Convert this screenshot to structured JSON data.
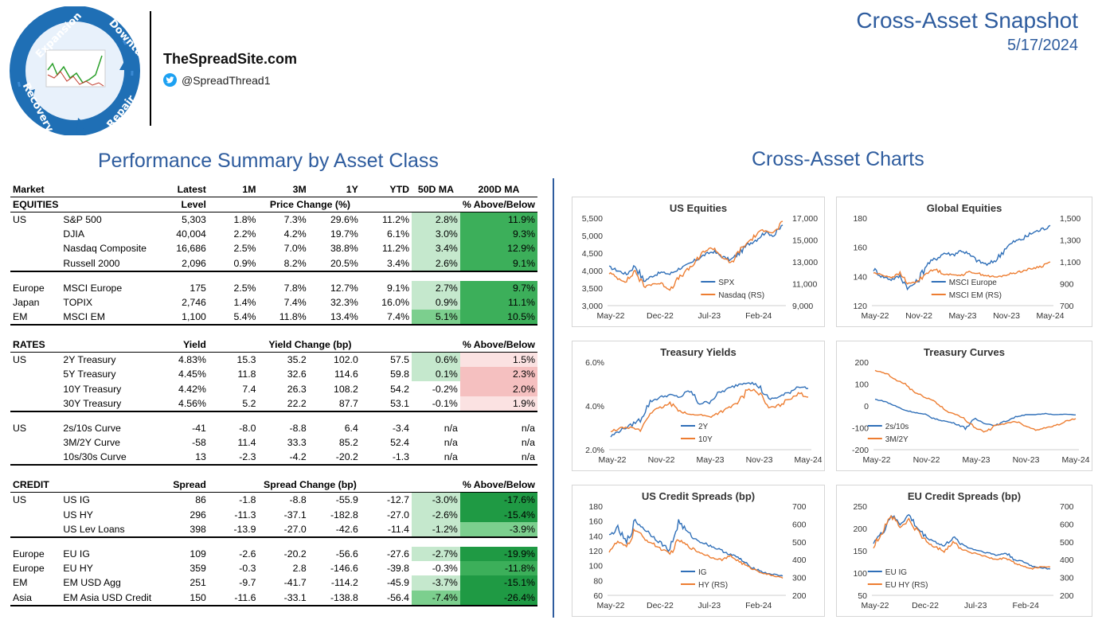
{
  "header": {
    "site_name": "TheSpreadSite.com",
    "twitter_handle": "@SpreadThread1",
    "report_title": "Cross-Asset Snapshot",
    "report_date": "5/17/2024",
    "logo_words": [
      "Expansion",
      "Downturn",
      "Repair",
      "Recovery"
    ]
  },
  "sections": {
    "performance_title": "Performance Summary by Asset Class",
    "charts_title": "Cross-Asset Charts"
  },
  "table": {
    "columns": [
      "Market",
      "Latest",
      "1M",
      "3M",
      "1Y",
      "YTD",
      "50D MA",
      "200D MA"
    ],
    "equities": {
      "header": [
        "EQUITIES",
        "Level",
        "Price Change (%)",
        "% Above/Below"
      ],
      "rows": [
        {
          "region": "US",
          "name": "S&P 500",
          "latest": "5,303",
          "m1": "1.8%",
          "m3": "7.3%",
          "y1": "29.6%",
          "ytd": "11.2%",
          "ma50": "2.8%",
          "ma200": "11.9%"
        },
        {
          "region": "",
          "name": "DJIA",
          "latest": "40,004",
          "m1": "2.2%",
          "m3": "4.2%",
          "y1": "19.7%",
          "ytd": "6.1%",
          "ma50": "3.0%",
          "ma200": "9.3%"
        },
        {
          "region": "",
          "name": "Nasdaq Composite",
          "latest": "16,686",
          "m1": "2.5%",
          "m3": "7.0%",
          "y1": "38.8%",
          "ytd": "11.2%",
          "ma50": "3.4%",
          "ma200": "12.9%"
        },
        {
          "region": "",
          "name": "Russell 2000",
          "latest": "2,096",
          "m1": "0.9%",
          "m3": "8.2%",
          "y1": "20.5%",
          "ytd": "3.4%",
          "ma50": "2.6%",
          "ma200": "9.1%"
        },
        {
          "region": "Europe",
          "name": "MSCI Europe",
          "latest": "175",
          "m1": "2.5%",
          "m3": "7.8%",
          "y1": "12.7%",
          "ytd": "9.1%",
          "ma50": "2.7%",
          "ma200": "9.7%"
        },
        {
          "region": "Japan",
          "name": "TOPIX",
          "latest": "2,746",
          "m1": "1.4%",
          "m3": "7.4%",
          "y1": "32.3%",
          "ytd": "16.0%",
          "ma50": "0.9%",
          "ma200": "11.1%"
        },
        {
          "region": "EM",
          "name": "MSCI EM",
          "latest": "1,100",
          "m1": "5.4%",
          "m3": "11.8%",
          "y1": "13.4%",
          "ytd": "7.4%",
          "ma50": "5.1%",
          "ma200": "10.5%"
        }
      ]
    },
    "rates": {
      "header": [
        "RATES",
        "Yield",
        "Yield Change (bp)",
        "% Above/Below"
      ],
      "rows": [
        {
          "region": "US",
          "name": "2Y Treasury",
          "latest": "4.83%",
          "m1": "15.3",
          "m3": "35.2",
          "y1": "102.0",
          "ytd": "57.5",
          "ma50": "0.6%",
          "ma200": "1.5%"
        },
        {
          "region": "",
          "name": "5Y Treasury",
          "latest": "4.45%",
          "m1": "11.8",
          "m3": "32.6",
          "y1": "114.6",
          "ytd": "59.8",
          "ma50": "0.1%",
          "ma200": "2.3%"
        },
        {
          "region": "",
          "name": "10Y Treasury",
          "latest": "4.42%",
          "m1": "7.4",
          "m3": "26.3",
          "y1": "108.2",
          "ytd": "54.2",
          "ma50": "-0.2%",
          "ma200": "2.0%"
        },
        {
          "region": "",
          "name": "30Y Treasury",
          "latest": "4.56%",
          "m1": "5.2",
          "m3": "22.2",
          "y1": "87.7",
          "ytd": "53.1",
          "ma50": "-0.1%",
          "ma200": "1.9%"
        },
        {
          "region": "US",
          "name": "2s/10s Curve",
          "latest": "-41",
          "m1": "-8.0",
          "m3": "-8.8",
          "y1": "6.4",
          "ytd": "-3.4",
          "ma50": "n/a",
          "ma200": "n/a"
        },
        {
          "region": "",
          "name": "3M/2Y Curve",
          "latest": "-58",
          "m1": "11.4",
          "m3": "33.3",
          "y1": "85.2",
          "ytd": "52.4",
          "ma50": "n/a",
          "ma200": "n/a"
        },
        {
          "region": "",
          "name": "10s/30s Curve",
          "latest": "13",
          "m1": "-2.3",
          "m3": "-4.2",
          "y1": "-20.2",
          "ytd": "-1.3",
          "ma50": "n/a",
          "ma200": "n/a"
        }
      ]
    },
    "credit": {
      "header": [
        "CREDIT",
        "Spread",
        "Spread Change (bp)",
        "% Above/Below"
      ],
      "rows": [
        {
          "region": "US",
          "name": "US IG",
          "latest": "86",
          "m1": "-1.8",
          "m3": "-8.8",
          "y1": "-55.9",
          "ytd": "-12.7",
          "ma50": "-3.0%",
          "ma200": "-17.6%"
        },
        {
          "region": "",
          "name": "US HY",
          "latest": "296",
          "m1": "-11.3",
          "m3": "-37.1",
          "y1": "-182.8",
          "ytd": "-27.0",
          "ma50": "-2.6%",
          "ma200": "-15.4%"
        },
        {
          "region": "",
          "name": "US Lev Loans",
          "latest": "398",
          "m1": "-13.9",
          "m3": "-27.0",
          "y1": "-42.6",
          "ytd": "-11.4",
          "ma50": "-1.2%",
          "ma200": "-3.9%"
        },
        {
          "region": "Europe",
          "name": "EU IG",
          "latest": "109",
          "m1": "-2.6",
          "m3": "-20.2",
          "y1": "-56.6",
          "ytd": "-27.6",
          "ma50": "-2.7%",
          "ma200": "-19.9%"
        },
        {
          "region": "Europe",
          "name": "EU HY",
          "latest": "359",
          "m1": "-0.3",
          "m3": "2.8",
          "y1": "-146.6",
          "ytd": "-39.8",
          "ma50": "-0.3%",
          "ma200": "-11.8%"
        },
        {
          "region": "EM",
          "name": "EM USD Agg",
          "latest": "251",
          "m1": "-9.7",
          "m3": "-41.7",
          "y1": "-114.2",
          "ytd": "-45.9",
          "ma50": "-3.7%",
          "ma200": "-15.1%"
        },
        {
          "region": "Asia",
          "name": "EM Asia USD Credit",
          "latest": "150",
          "m1": "-11.6",
          "m3": "-33.1",
          "y1": "-138.8",
          "ytd": "-56.4",
          "ma50": "-7.4%",
          "ma200": "-26.4%"
        }
      ]
    }
  },
  "colors": {
    "accent_blue": "#2e5c9e",
    "series_blue": "#2f6fb8",
    "series_orange": "#ed7d31",
    "green_light": "#c5e8cd",
    "green_mid": "#7ccf8e",
    "green_dark": "#1f9a44",
    "red_light": "#fbe2e2"
  },
  "chart_data": [
    {
      "id": "us_equities",
      "type": "line",
      "title": "US Equities",
      "x_ticks": [
        "May-22",
        "Dec-22",
        "Jul-23",
        "Feb-24"
      ],
      "ylim": [
        3000,
        5500
      ],
      "y_ticks": [
        "3,000",
        "3,500",
        "4,000",
        "4,500",
        "5,000",
        "5,500"
      ],
      "y2lim": [
        9000,
        17000
      ],
      "y2_ticks": [
        "9,000",
        "11,000",
        "13,000",
        "15,000",
        "17,000"
      ],
      "series": [
        {
          "name": "SPX",
          "axis": "left",
          "color": "#2f6fb8",
          "values": [
            4100,
            4000,
            3900,
            4150,
            3700,
            3850,
            3950,
            3900,
            4050,
            4150,
            4300,
            4450,
            4550,
            4400,
            4300,
            4500,
            4750,
            4900,
            5100,
            5000,
            5300
          ]
        },
        {
          "name": "Nasdaq (RS)",
          "axis": "right",
          "color": "#ed7d31",
          "values": [
            12000,
            11500,
            11200,
            12200,
            10700,
            11000,
            11000,
            10500,
            11500,
            12200,
            13000,
            14000,
            14300,
            13500,
            12800,
            14000,
            14800,
            15500,
            16000,
            15600,
            16700
          ]
        }
      ]
    },
    {
      "id": "global_equities",
      "type": "line",
      "title": "Global Equities",
      "x_ticks": [
        "May-22",
        "Nov-22",
        "May-23",
        "Nov-23",
        "May-24"
      ],
      "ylim": [
        120,
        180
      ],
      "y_ticks": [
        "120",
        "140",
        "160",
        "180"
      ],
      "y2lim": [
        700,
        1500
      ],
      "y2_ticks": [
        "700",
        "900",
        "1,100",
        "1,300",
        "1,500"
      ],
      "series": [
        {
          "name": "MSCI Europe",
          "axis": "left",
          "color": "#2f6fb8",
          "values": [
            145,
            140,
            138,
            140,
            132,
            137,
            148,
            152,
            156,
            155,
            158,
            154,
            150,
            148,
            152,
            160,
            164,
            166,
            170,
            172,
            175
          ]
        },
        {
          "name": "MSCI EM (RS)",
          "axis": "right",
          "color": "#ed7d31",
          "values": [
            1000,
            980,
            960,
            990,
            900,
            920,
            1000,
            1030,
            990,
            980,
            980,
            1010,
            990,
            970,
            960,
            980,
            1000,
            1020,
            1040,
            1060,
            1100
          ]
        }
      ]
    },
    {
      "id": "treasury_yields",
      "type": "line",
      "title": "Treasury Yields",
      "x_ticks": [
        "May-22",
        "Nov-22",
        "May-23",
        "Nov-23",
        "May-24"
      ],
      "ylim": [
        2.0,
        6.0
      ],
      "y_ticks": [
        "2.0%",
        "4.0%",
        "6.0%"
      ],
      "series": [
        {
          "name": "2Y",
          "color": "#2f6fb8",
          "values": [
            2.6,
            2.9,
            3.1,
            3.4,
            4.2,
            4.4,
            4.5,
            4.4,
            4.7,
            4.1,
            4.2,
            4.6,
            4.8,
            5.0,
            5.1,
            4.9,
            4.3,
            4.4,
            4.6,
            4.9,
            4.8
          ]
        },
        {
          "name": "10Y",
          "color": "#ed7d31",
          "values": [
            2.8,
            3.0,
            3.0,
            2.9,
            3.7,
            3.9,
            4.1,
            3.8,
            3.6,
            3.6,
            3.5,
            3.7,
            3.9,
            4.2,
            4.8,
            4.6,
            3.9,
            4.0,
            4.3,
            4.6,
            4.4
          ]
        }
      ]
    },
    {
      "id": "treasury_curves",
      "type": "line",
      "title": "Treasury Curves",
      "x_ticks": [
        "May-22",
        "Nov-22",
        "May-23",
        "Nov-23",
        "May-24"
      ],
      "ylim": [
        -200,
        200
      ],
      "y_ticks": [
        "-200",
        "-100",
        "0",
        "100",
        "200"
      ],
      "series": [
        {
          "name": "2s/10s",
          "color": "#2f6fb8",
          "values": [
            30,
            20,
            0,
            -20,
            -30,
            -40,
            -60,
            -70,
            -80,
            -100,
            -60,
            -80,
            -90,
            -70,
            -50,
            -40,
            -40,
            -35,
            -40,
            -38,
            -41
          ]
        },
        {
          "name": "3M/2Y",
          "color": "#ed7d31",
          "values": [
            160,
            150,
            120,
            100,
            60,
            40,
            20,
            -20,
            -40,
            -60,
            -100,
            -120,
            -90,
            -80,
            -70,
            -90,
            -110,
            -100,
            -90,
            -70,
            -58
          ]
        }
      ]
    },
    {
      "id": "us_credit_spreads",
      "type": "line",
      "title": "US Credit Spreads (bp)",
      "x_ticks": [
        "May-22",
        "Dec-22",
        "Jul-23",
        "Feb-24"
      ],
      "ylim": [
        60,
        180
      ],
      "y_ticks": [
        "60",
        "80",
        "100",
        "120",
        "140",
        "160",
        "180"
      ],
      "y2lim": [
        200,
        700
      ],
      "y2_ticks": [
        "200",
        "300",
        "400",
        "500",
        "600",
        "700"
      ],
      "series": [
        {
          "name": "IG",
          "axis": "left",
          "color": "#2f6fb8",
          "values": [
            140,
            150,
            130,
            160,
            150,
            140,
            130,
            120,
            160,
            145,
            135,
            130,
            125,
            120,
            115,
            110,
            100,
            95,
            90,
            88,
            86
          ]
        },
        {
          "name": "HY (RS)",
          "axis": "right",
          "color": "#ed7d31",
          "values": [
            450,
            500,
            470,
            570,
            520,
            490,
            460,
            430,
            510,
            480,
            450,
            430,
            410,
            400,
            420,
            390,
            360,
            340,
            320,
            310,
            296
          ]
        }
      ]
    },
    {
      "id": "eu_credit_spreads",
      "type": "line",
      "title": "EU Credit Spreads (bp)",
      "x_ticks": [
        "May-22",
        "Dec-22",
        "Jul-23",
        "Feb-24"
      ],
      "ylim": [
        50,
        250
      ],
      "y_ticks": [
        "50",
        "100",
        "150",
        "200",
        "250"
      ],
      "y2lim": [
        200,
        700
      ],
      "y2_ticks": [
        "200",
        "300",
        "400",
        "500",
        "600",
        "700"
      ],
      "series": [
        {
          "name": "EU IG",
          "axis": "left",
          "color": "#2f6fb8",
          "values": [
            170,
            190,
            230,
            210,
            230,
            200,
            180,
            170,
            160,
            180,
            165,
            155,
            150,
            145,
            140,
            145,
            130,
            125,
            115,
            112,
            109
          ]
        },
        {
          "name": "EU HY (RS)",
          "axis": "right",
          "color": "#ed7d31",
          "values": [
            470,
            560,
            650,
            580,
            620,
            560,
            500,
            470,
            450,
            500,
            460,
            440,
            430,
            410,
            400,
            410,
            380,
            360,
            350,
            360,
            359
          ]
        }
      ]
    }
  ]
}
